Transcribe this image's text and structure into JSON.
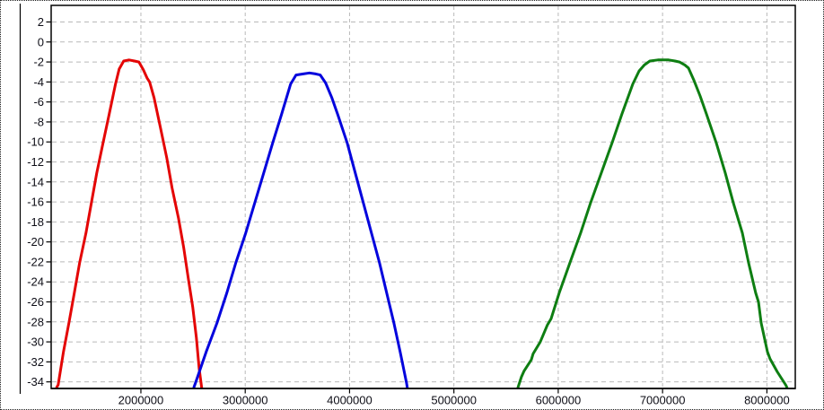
{
  "panel": {
    "background": "#ffffff",
    "outer_border_style": "dotted",
    "outer_border_color": "#1b1b1b"
  },
  "chart_data": {
    "type": "line",
    "title": "",
    "xlabel": "",
    "ylabel": "",
    "xlim": [
      1140000,
      8272000
    ],
    "ylim": [
      -34.66,
      3.66
    ],
    "x_ticks": [
      2000000,
      3000000,
      4000000,
      5000000,
      6000000,
      7000000,
      8000000
    ],
    "x_tick_labels": [
      "2000000",
      "3000000",
      "4000000",
      "5000000",
      "6000000",
      "7000000",
      "8000000"
    ],
    "y_ticks": [
      2,
      0,
      -2,
      -4,
      -6,
      -8,
      -10,
      -12,
      -14,
      -16,
      -18,
      -20,
      -22,
      -24,
      -26,
      -28,
      -30,
      -32,
      -34
    ],
    "y_tick_labels": [
      "2",
      "0",
      "-2",
      "-4",
      "-6",
      "-8",
      "-10",
      "-12",
      "-14",
      "-16",
      "-18",
      "-20",
      "-22",
      "-24",
      "-26",
      "-28",
      "-30",
      "-32",
      "-34"
    ],
    "grid": true,
    "grid_style": "dashed",
    "legend": "none",
    "colors": {
      "grid": "#b9b9b9",
      "axis": "#000000",
      "tick_text": "#0d0d16",
      "plot_background": "#ffffff",
      "red_trace": "#e40505",
      "blue_trace": "#0404dd",
      "green_trace": "#0e7e12"
    },
    "series": [
      {
        "name": "red",
        "color": "#e40505",
        "points": [
          [
            1190000,
            -34.6
          ],
          [
            1207000,
            -34.3
          ],
          [
            1258000,
            -31.0
          ],
          [
            1310000,
            -28.1
          ],
          [
            1362000,
            -25.1
          ],
          [
            1413000,
            -22.1
          ],
          [
            1474000,
            -19.1
          ],
          [
            1525000,
            -16.1
          ],
          [
            1577000,
            -13.1
          ],
          [
            1637000,
            -10.1
          ],
          [
            1697000,
            -7.2
          ],
          [
            1757000,
            -4.2
          ],
          [
            1792000,
            -2.7
          ],
          [
            1835000,
            -1.9
          ],
          [
            1886000,
            -1.8
          ],
          [
            1938000,
            -1.9
          ],
          [
            1981000,
            -2.0
          ],
          [
            2024000,
            -2.8
          ],
          [
            2059000,
            -3.6
          ],
          [
            2084000,
            -4.0
          ],
          [
            2127000,
            -5.6
          ],
          [
            2188000,
            -8.6
          ],
          [
            2248000,
            -11.6
          ],
          [
            2299000,
            -14.6
          ],
          [
            2360000,
            -17.6
          ],
          [
            2411000,
            -20.6
          ],
          [
            2454000,
            -23.6
          ],
          [
            2497000,
            -26.5
          ],
          [
            2532000,
            -29.6
          ],
          [
            2558000,
            -32.6
          ],
          [
            2583000,
            -34.6
          ]
        ]
      },
      {
        "name": "blue",
        "color": "#0404dd",
        "points": [
          [
            2506000,
            -34.6
          ],
          [
            2523000,
            -34.1
          ],
          [
            2626000,
            -31.0
          ],
          [
            2730000,
            -28.1
          ],
          [
            2824000,
            -25.1
          ],
          [
            2910000,
            -22.1
          ],
          [
            3005000,
            -19.1
          ],
          [
            3091000,
            -16.1
          ],
          [
            3177000,
            -13.1
          ],
          [
            3263000,
            -10.1
          ],
          [
            3349000,
            -7.2
          ],
          [
            3435000,
            -4.2
          ],
          [
            3487000,
            -3.3
          ],
          [
            3556000,
            -3.2
          ],
          [
            3616000,
            -3.1
          ],
          [
            3676000,
            -3.2
          ],
          [
            3719000,
            -3.3
          ],
          [
            3771000,
            -4.1
          ],
          [
            3831000,
            -5.6
          ],
          [
            3891000,
            -7.4
          ],
          [
            3977000,
            -10.1
          ],
          [
            4055000,
            -13.1
          ],
          [
            4132000,
            -16.1
          ],
          [
            4210000,
            -19.1
          ],
          [
            4287000,
            -22.1
          ],
          [
            4356000,
            -25.1
          ],
          [
            4425000,
            -28.1
          ],
          [
            4485000,
            -31.0
          ],
          [
            4546000,
            -34.1
          ],
          [
            4554000,
            -34.6
          ]
        ]
      },
      {
        "name": "green",
        "color": "#0e7e12",
        "points": [
          [
            5613000,
            -34.6
          ],
          [
            5647000,
            -33.5
          ],
          [
            5673000,
            -32.9
          ],
          [
            5742000,
            -31.8
          ],
          [
            5759000,
            -31.2
          ],
          [
            5828000,
            -30.0
          ],
          [
            5897000,
            -28.3
          ],
          [
            5931000,
            -27.7
          ],
          [
            6009000,
            -25.1
          ],
          [
            6112000,
            -22.1
          ],
          [
            6215000,
            -19.1
          ],
          [
            6310000,
            -16.1
          ],
          [
            6413000,
            -13.1
          ],
          [
            6516000,
            -10.1
          ],
          [
            6611000,
            -7.2
          ],
          [
            6715000,
            -4.2
          ],
          [
            6775000,
            -2.9
          ],
          [
            6826000,
            -2.3
          ],
          [
            6878000,
            -1.9
          ],
          [
            6955000,
            -1.8
          ],
          [
            7058000,
            -1.8
          ],
          [
            7119000,
            -1.9
          ],
          [
            7162000,
            -2.0
          ],
          [
            7213000,
            -2.3
          ],
          [
            7248000,
            -2.6
          ],
          [
            7299000,
            -3.8
          ],
          [
            7360000,
            -5.4
          ],
          [
            7420000,
            -7.2
          ],
          [
            7515000,
            -10.1
          ],
          [
            7601000,
            -13.1
          ],
          [
            7678000,
            -16.1
          ],
          [
            7764000,
            -19.1
          ],
          [
            7825000,
            -22.1
          ],
          [
            7893000,
            -25.1
          ],
          [
            7919000,
            -26.0
          ],
          [
            7945000,
            -28.1
          ],
          [
            8005000,
            -31.0
          ],
          [
            8030000,
            -31.7
          ],
          [
            8100000,
            -33.0
          ],
          [
            8180000,
            -34.3
          ],
          [
            8195000,
            -34.6
          ]
        ]
      }
    ]
  }
}
